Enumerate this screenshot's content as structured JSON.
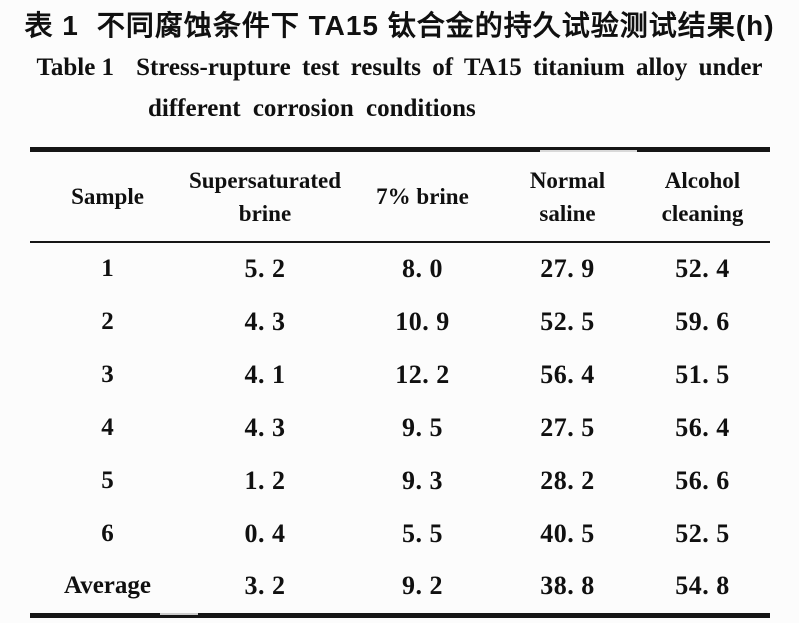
{
  "page": {
    "background": "#fcfcfc",
    "ink": "#101010"
  },
  "caption": {
    "zh": {
      "label": "表 1",
      "text": "不同腐蚀条件下 TA15 钛合金的持久试验测试结果(h)"
    },
    "en": {
      "label": "Table 1",
      "line1": "Stress-rupture test results of TA15 titanium alloy under",
      "line2": "different corrosion conditions"
    }
  },
  "table": {
    "headers": [
      "Sample",
      "Supersaturated\nbrine",
      "7%  brine",
      "Normal\nsaline",
      "Alcohol\ncleaning"
    ],
    "rows": [
      {
        "label": "1",
        "values": [
          "5. 2",
          "8. 0",
          "27. 9",
          "52. 4"
        ]
      },
      {
        "label": "2",
        "values": [
          "4. 3",
          "10. 9",
          "52. 5",
          "59. 6"
        ]
      },
      {
        "label": "3",
        "values": [
          "4. 1",
          "12. 2",
          "56. 4",
          "51. 5"
        ]
      },
      {
        "label": "4",
        "values": [
          "4. 3",
          "9. 5",
          "27. 5",
          "56. 4"
        ]
      },
      {
        "label": "5",
        "values": [
          "1. 2",
          "9. 3",
          "28. 2",
          "56. 6"
        ]
      },
      {
        "label": "6",
        "values": [
          "0. 4",
          "5. 5",
          "40. 5",
          "52. 5"
        ]
      },
      {
        "label": "Average",
        "values": [
          "3. 2",
          "9. 2",
          "38. 8",
          "54. 8"
        ]
      }
    ],
    "unit": "h"
  },
  "chart_data": {
    "type": "table",
    "title": "Stress-rupture test results of TA15 titanium alloy under different corrosion conditions (h)",
    "columns": [
      "Sample",
      "Supersaturated brine",
      "7% brine",
      "Normal saline",
      "Alcohol cleaning"
    ],
    "rows": [
      [
        "1",
        5.2,
        8.0,
        27.9,
        52.4
      ],
      [
        "2",
        4.3,
        10.9,
        52.5,
        59.6
      ],
      [
        "3",
        4.1,
        12.2,
        56.4,
        51.5
      ],
      [
        "4",
        4.3,
        9.5,
        27.5,
        56.4
      ],
      [
        "5",
        1.2,
        9.3,
        28.2,
        56.6
      ],
      [
        "6",
        0.4,
        5.5,
        40.5,
        52.5
      ],
      [
        "Average",
        3.2,
        9.2,
        38.8,
        54.8
      ]
    ]
  }
}
